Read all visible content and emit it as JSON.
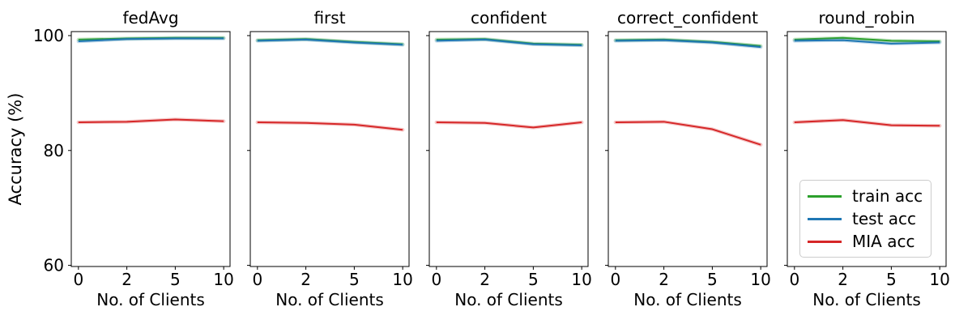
{
  "figure": {
    "ylabel": "Accuracy (%)",
    "background_color": "#ffffff",
    "spine_color": "#000000"
  },
  "legend": {
    "entries": [
      {
        "label": "train acc",
        "color": "#2ca02c"
      },
      {
        "label": "test acc",
        "color": "#1f77b4"
      },
      {
        "label": "MIA acc",
        "color": "#d62728"
      }
    ]
  },
  "chart_data": {
    "type": "line",
    "x": [
      0,
      2,
      5,
      10
    ],
    "x_tick_labels": [
      "0",
      "2",
      "5",
      "10"
    ],
    "y_ticks": [
      60,
      80,
      100
    ],
    "y_tick_labels": [
      "60",
      "80",
      "100"
    ],
    "ylim": [
      59.8,
      100.7
    ],
    "xlabel": "No. of Clients",
    "ylabel": "Accuracy (%)",
    "grid": false,
    "legend_position": "lower area of last subplot",
    "series_colors": {
      "train acc": "#2ca02c",
      "test acc": "#1f77b4",
      "MIA acc": "#d62728"
    },
    "subplots": [
      {
        "title": "fedAvg",
        "series": [
          {
            "name": "train acc",
            "values": [
              99.3,
              99.5,
              99.6,
              99.6
            ]
          },
          {
            "name": "test acc",
            "values": [
              99.0,
              99.4,
              99.5,
              99.5
            ]
          },
          {
            "name": "MIA acc",
            "values": [
              84.9,
              85.0,
              85.4,
              85.1
            ]
          }
        ]
      },
      {
        "title": "first",
        "series": [
          {
            "name": "train acc",
            "values": [
              99.2,
              99.4,
              98.9,
              98.5
            ]
          },
          {
            "name": "test acc",
            "values": [
              99.1,
              99.3,
              98.8,
              98.4
            ]
          },
          {
            "name": "MIA acc",
            "values": [
              84.9,
              84.8,
              84.5,
              83.6
            ]
          }
        ]
      },
      {
        "title": "confident",
        "series": [
          {
            "name": "train acc",
            "values": [
              99.3,
              99.4,
              98.6,
              98.4
            ]
          },
          {
            "name": "test acc",
            "values": [
              99.1,
              99.3,
              98.5,
              98.3
            ]
          },
          {
            "name": "MIA acc",
            "values": [
              84.9,
              84.8,
              84.0,
              84.9
            ]
          }
        ]
      },
      {
        "title": "correct_confident",
        "series": [
          {
            "name": "train acc",
            "values": [
              99.2,
              99.3,
              98.9,
              98.2
            ]
          },
          {
            "name": "test acc",
            "values": [
              99.1,
              99.2,
              98.8,
              98.0
            ]
          },
          {
            "name": "MIA acc",
            "values": [
              84.9,
              85.0,
              83.7,
              81.0
            ]
          }
        ]
      },
      {
        "title": "round_robin",
        "series": [
          {
            "name": "train acc",
            "values": [
              99.3,
              99.6,
              99.1,
              99.0
            ]
          },
          {
            "name": "test acc",
            "values": [
              99.1,
              99.2,
              98.6,
              98.8
            ]
          },
          {
            "name": "MIA acc",
            "values": [
              84.9,
              85.3,
              84.4,
              84.3
            ]
          }
        ]
      }
    ]
  }
}
